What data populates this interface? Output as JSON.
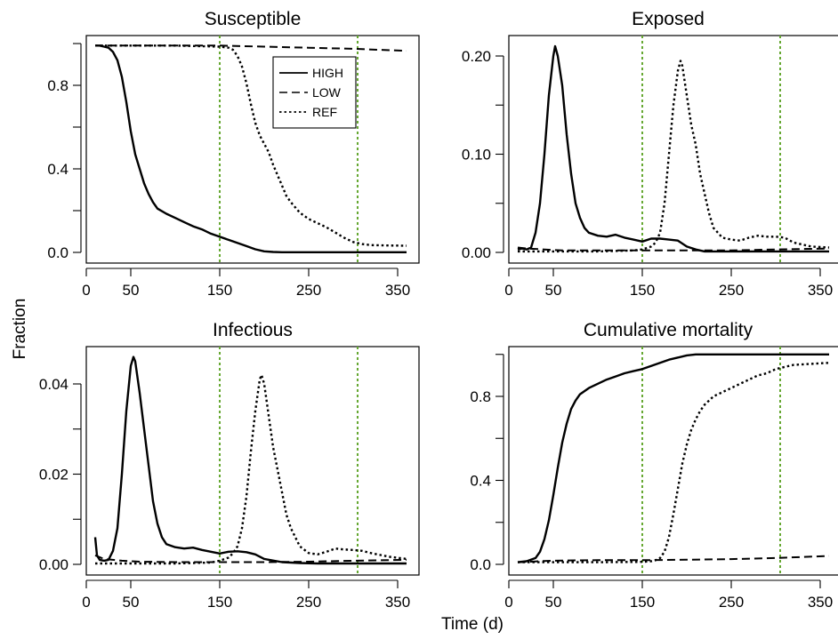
{
  "figure": {
    "shared_ylabel": "Fraction",
    "shared_xlabel": "Time (d)"
  },
  "colors": {
    "marker_line": "#66a832",
    "series_line": "#000000"
  },
  "legend": {
    "entries": [
      {
        "name": "HIGH",
        "dash": "solid"
      },
      {
        "name": "LOW",
        "dash": "dashed"
      },
      {
        "name": "REF",
        "dash": "dotted"
      }
    ],
    "placement": "top-right of Susceptible panel"
  },
  "chart_data": [
    {
      "type": "line",
      "title": "Susceptible",
      "xlim": [
        0,
        365
      ],
      "ylim": [
        0,
        1
      ],
      "xticks": [
        0,
        50,
        150,
        250,
        350
      ],
      "yticks": [
        0.0,
        0.4,
        0.8
      ],
      "yticks_minor": [
        0.2,
        0.6,
        1.0
      ],
      "ytick_labels": [
        "0.0",
        "0.4",
        "0.8"
      ],
      "vlines": [
        150,
        305
      ],
      "series": [
        {
          "name": "HIGH",
          "dash": "solid",
          "x": [
            10,
            15,
            20,
            25,
            30,
            35,
            40,
            45,
            50,
            55,
            60,
            65,
            70,
            75,
            80,
            90,
            100,
            110,
            120,
            130,
            140,
            150,
            160,
            170,
            180,
            190,
            200,
            210,
            220,
            240,
            260,
            300,
            360
          ],
          "y": [
            0.99,
            0.99,
            0.985,
            0.98,
            0.96,
            0.92,
            0.84,
            0.72,
            0.58,
            0.47,
            0.4,
            0.33,
            0.28,
            0.24,
            0.21,
            0.185,
            0.165,
            0.145,
            0.125,
            0.11,
            0.09,
            0.075,
            0.06,
            0.045,
            0.03,
            0.015,
            0.005,
            0.002,
            0.001,
            0.001,
            0.001,
            0.001,
            0.001
          ]
        },
        {
          "name": "LOW",
          "dash": "dashed",
          "x": [
            10,
            30,
            60,
            100,
            150,
            200,
            250,
            300,
            330,
            360
          ],
          "y": [
            0.99,
            0.99,
            0.99,
            0.99,
            0.99,
            0.985,
            0.98,
            0.975,
            0.97,
            0.965
          ]
        },
        {
          "name": "REF",
          "dash": "dotted",
          "x": [
            10,
            50,
            100,
            150,
            160,
            165,
            170,
            175,
            180,
            185,
            190,
            195,
            200,
            205,
            210,
            215,
            220,
            225,
            230,
            240,
            250,
            260,
            270,
            280,
            290,
            300,
            310,
            320,
            340,
            360
          ],
          "y": [
            0.99,
            0.99,
            0.99,
            0.985,
            0.98,
            0.97,
            0.94,
            0.89,
            0.81,
            0.71,
            0.62,
            0.56,
            0.52,
            0.48,
            0.42,
            0.37,
            0.32,
            0.27,
            0.24,
            0.19,
            0.16,
            0.14,
            0.12,
            0.095,
            0.07,
            0.05,
            0.04,
            0.035,
            0.033,
            0.032
          ]
        }
      ]
    },
    {
      "type": "line",
      "title": "Exposed",
      "xlim": [
        0,
        365
      ],
      "ylim": [
        0,
        0.22
      ],
      "xticks": [
        0,
        50,
        150,
        250,
        350
      ],
      "yticks": [
        0.0,
        0.1,
        0.2
      ],
      "yticks_minor": [
        0.05,
        0.15
      ],
      "ytick_labels": [
        "0.00",
        "0.10",
        "0.20"
      ],
      "vlines": [
        150,
        305
      ],
      "series": [
        {
          "name": "HIGH",
          "dash": "solid",
          "x": [
            10,
            15,
            20,
            25,
            30,
            35,
            40,
            45,
            50,
            52,
            55,
            60,
            65,
            70,
            75,
            80,
            85,
            90,
            100,
            110,
            120,
            130,
            140,
            150,
            160,
            170,
            180,
            190,
            200,
            210,
            220,
            240,
            260,
            300,
            360
          ],
          "y": [
            0.003,
            0.004,
            0.003,
            0.005,
            0.02,
            0.05,
            0.1,
            0.16,
            0.2,
            0.21,
            0.2,
            0.17,
            0.12,
            0.08,
            0.05,
            0.035,
            0.025,
            0.02,
            0.017,
            0.016,
            0.018,
            0.015,
            0.013,
            0.011,
            0.014,
            0.014,
            0.013,
            0.012,
            0.006,
            0.003,
            0.001,
            0.001,
            0.001,
            0.001,
            0.001
          ]
        },
        {
          "name": "LOW",
          "dash": "dashed",
          "x": [
            10,
            20,
            40,
            60,
            100,
            150,
            200,
            250,
            300,
            360
          ],
          "y": [
            0.005,
            0.004,
            0.003,
            0.002,
            0.002,
            0.002,
            0.002,
            0.002,
            0.003,
            0.004
          ]
        },
        {
          "name": "REF",
          "dash": "dotted",
          "x": [
            10,
            50,
            100,
            140,
            150,
            160,
            165,
            170,
            175,
            180,
            185,
            190,
            193,
            195,
            200,
            205,
            210,
            215,
            220,
            225,
            230,
            240,
            250,
            260,
            270,
            280,
            290,
            300,
            310,
            320,
            340,
            360
          ],
          "y": [
            0.001,
            0.001,
            0.001,
            0.002,
            0.003,
            0.006,
            0.01,
            0.02,
            0.05,
            0.1,
            0.15,
            0.185,
            0.195,
            0.19,
            0.16,
            0.13,
            0.11,
            0.08,
            0.06,
            0.04,
            0.025,
            0.015,
            0.013,
            0.012,
            0.015,
            0.017,
            0.016,
            0.016,
            0.015,
            0.01,
            0.006,
            0.005
          ]
        }
      ]
    },
    {
      "type": "line",
      "title": "Infectious",
      "xlim": [
        0,
        365
      ],
      "ylim": [
        0,
        0.047
      ],
      "xticks": [
        0,
        50,
        150,
        250,
        350
      ],
      "yticks": [
        0.0,
        0.02,
        0.04
      ],
      "yticks_minor": [
        0.01,
        0.03
      ],
      "ytick_labels": [
        "0.00",
        "0.02",
        "0.04"
      ],
      "vlines": [
        150,
        305
      ],
      "series": [
        {
          "name": "HIGH",
          "dash": "solid",
          "x": [
            10,
            12,
            15,
            20,
            25,
            30,
            35,
            40,
            45,
            50,
            53,
            55,
            60,
            65,
            70,
            75,
            80,
            85,
            90,
            100,
            110,
            120,
            130,
            140,
            150,
            160,
            170,
            180,
            190,
            200,
            220,
            240,
            260,
            300,
            360
          ],
          "y": [
            0.006,
            0.002,
            0.001,
            0.0008,
            0.001,
            0.003,
            0.008,
            0.02,
            0.034,
            0.044,
            0.046,
            0.045,
            0.038,
            0.03,
            0.022,
            0.014,
            0.009,
            0.006,
            0.0045,
            0.0038,
            0.0035,
            0.0037,
            0.0032,
            0.0028,
            0.0024,
            0.0028,
            0.0029,
            0.0027,
            0.0022,
            0.0012,
            0.0005,
            0.0003,
            0.0002,
            0.0002,
            0.0002
          ]
        },
        {
          "name": "LOW",
          "dash": "dashed",
          "x": [
            10,
            20,
            40,
            60,
            100,
            150,
            200,
            250,
            300,
            330,
            360
          ],
          "y": [
            0.002,
            0.0012,
            0.0008,
            0.0006,
            0.0005,
            0.0005,
            0.0005,
            0.0006,
            0.0008,
            0.0009,
            0.001
          ]
        },
        {
          "name": "REF",
          "dash": "dotted",
          "x": [
            10,
            100,
            140,
            150,
            160,
            165,
            170,
            175,
            180,
            185,
            190,
            195,
            197,
            200,
            205,
            210,
            215,
            220,
            225,
            230,
            240,
            250,
            260,
            270,
            280,
            290,
            300,
            310,
            320,
            340,
            360
          ],
          "y": [
            0.0002,
            0.0002,
            0.0004,
            0.0008,
            0.0015,
            0.0025,
            0.004,
            0.008,
            0.015,
            0.025,
            0.034,
            0.041,
            0.042,
            0.04,
            0.033,
            0.026,
            0.021,
            0.016,
            0.011,
            0.008,
            0.004,
            0.0025,
            0.0022,
            0.0028,
            0.0035,
            0.0033,
            0.0032,
            0.003,
            0.0025,
            0.0017,
            0.0012
          ]
        }
      ]
    },
    {
      "type": "line",
      "title": "Cumulative mortality",
      "xlim": [
        0,
        365
      ],
      "ylim": [
        0,
        1
      ],
      "xticks": [
        0,
        50,
        150,
        250,
        350
      ],
      "yticks": [
        0.0,
        0.4,
        0.8
      ],
      "yticks_minor": [
        0.2,
        0.6,
        1.0
      ],
      "ytick_labels": [
        "0.0",
        "0.4",
        "0.8"
      ],
      "vlines": [
        150,
        305
      ],
      "series": [
        {
          "name": "HIGH",
          "dash": "solid",
          "x": [
            10,
            20,
            30,
            35,
            40,
            45,
            50,
            55,
            60,
            65,
            70,
            75,
            80,
            90,
            100,
            110,
            120,
            130,
            140,
            150,
            160,
            170,
            180,
            190,
            200,
            210,
            220,
            240,
            260,
            300,
            360
          ],
          "y": [
            0.01,
            0.015,
            0.03,
            0.06,
            0.12,
            0.21,
            0.33,
            0.46,
            0.58,
            0.67,
            0.74,
            0.78,
            0.81,
            0.84,
            0.86,
            0.88,
            0.895,
            0.91,
            0.92,
            0.93,
            0.945,
            0.96,
            0.975,
            0.985,
            0.995,
            1.0,
            1.0,
            1.0,
            1.0,
            1.0,
            1.0
          ]
        },
        {
          "name": "LOW",
          "dash": "dashed",
          "x": [
            10,
            20,
            30,
            40,
            60,
            100,
            150,
            200,
            250,
            300,
            330,
            360
          ],
          "y": [
            0.01,
            0.012,
            0.014,
            0.016,
            0.018,
            0.02,
            0.02,
            0.022,
            0.025,
            0.03,
            0.035,
            0.04
          ]
        },
        {
          "name": "REF",
          "dash": "dotted",
          "x": [
            10,
            100,
            150,
            160,
            165,
            170,
            175,
            180,
            185,
            190,
            195,
            200,
            205,
            210,
            215,
            220,
            225,
            230,
            240,
            250,
            260,
            270,
            280,
            290,
            300,
            310,
            320,
            340,
            360
          ],
          "y": [
            0.01,
            0.01,
            0.012,
            0.015,
            0.02,
            0.03,
            0.06,
            0.13,
            0.24,
            0.36,
            0.48,
            0.57,
            0.64,
            0.69,
            0.73,
            0.76,
            0.78,
            0.8,
            0.82,
            0.84,
            0.86,
            0.88,
            0.9,
            0.91,
            0.93,
            0.94,
            0.95,
            0.955,
            0.96
          ]
        }
      ]
    }
  ]
}
